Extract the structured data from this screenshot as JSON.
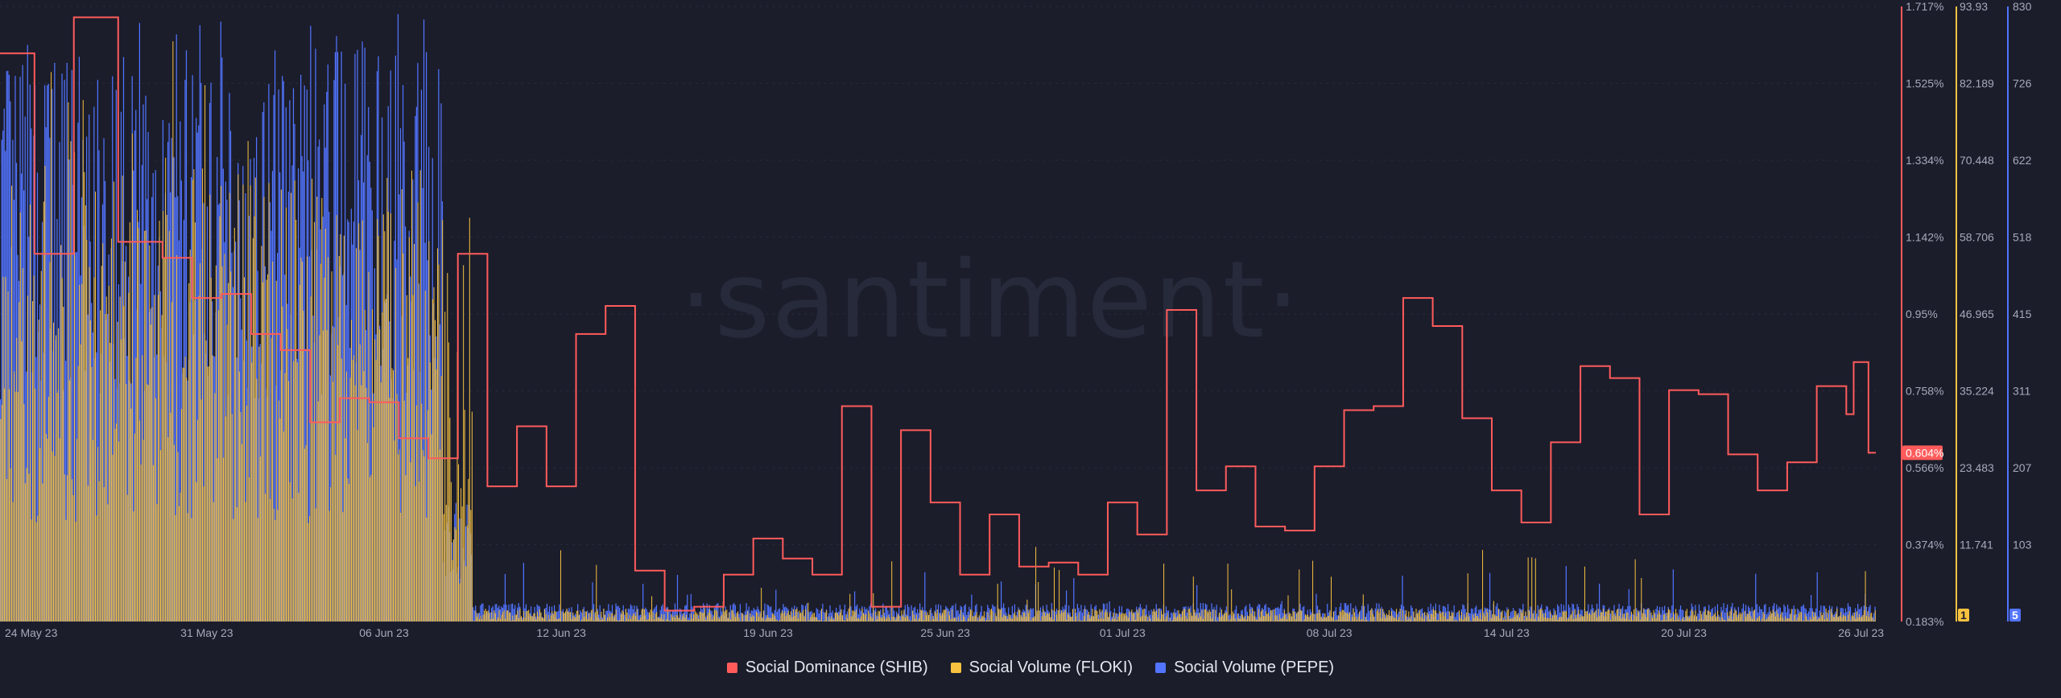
{
  "watermark": "·santiment·",
  "colors": {
    "background": "#1b1d2b",
    "shib": "#ff5b5b",
    "floki": "#f7c23f",
    "pepe": "#5274ff",
    "grid": "#2a2e3f",
    "text": "#a5a9ba"
  },
  "chart_data": {
    "type": "bar",
    "x_start": "2023-05-24",
    "x_end": "2023-07-26",
    "x_ticks": [
      "24 May 23",
      "31 May 23",
      "06 Jun 23",
      "12 Jun 23",
      "19 Jun 23",
      "25 Jun 23",
      "01 Jul 23",
      "08 Jul 23",
      "14 Jul 23",
      "20 Jul 23",
      "26 Jul 23"
    ],
    "axes": {
      "shib": {
        "ticks": [
          "1.717%",
          "1.525%",
          "1.334%",
          "1.142%",
          "0.95%",
          "0.758%",
          "0.566%",
          "0.374%",
          "0.183%"
        ],
        "range": [
          0.183,
          1.717
        ],
        "unit": "%"
      },
      "floki": {
        "ticks": [
          "93.93",
          "82.189",
          "70.448",
          "58.706",
          "46.965",
          "35.224",
          "23.483",
          "11.741"
        ],
        "range": [
          0,
          93.93
        ],
        "current_badge": "1"
      },
      "pepe": {
        "ticks": [
          "830",
          "726",
          "622",
          "518",
          "415",
          "311",
          "207",
          "103"
        ],
        "range": [
          0,
          830
        ],
        "current_badge": "5"
      }
    },
    "current_value_label": "0.604%",
    "series": [
      {
        "name": "Social Dominance (SHIB)",
        "type": "step-line",
        "axis": "shib",
        "points": [
          [
            "2023-05-24T00:00",
            1.6
          ],
          [
            "2023-05-25T04:00",
            1.1
          ],
          [
            "2023-05-26T12:00",
            1.69
          ],
          [
            "2023-05-28T00:00",
            1.13
          ],
          [
            "2023-05-29T12:00",
            1.09
          ],
          [
            "2023-05-30T12:00",
            0.99
          ],
          [
            "2023-05-31T12:00",
            1.0
          ],
          [
            "2023-06-01T12:00",
            0.9
          ],
          [
            "2023-06-02T12:00",
            0.86
          ],
          [
            "2023-06-03T12:00",
            0.68
          ],
          [
            "2023-06-04T12:00",
            0.74
          ],
          [
            "2023-06-05T12:00",
            0.73
          ],
          [
            "2023-06-06T12:00",
            0.64
          ],
          [
            "2023-06-07T12:00",
            0.59
          ],
          [
            "2023-06-08T12:00",
            1.1
          ],
          [
            "2023-06-09T12:00",
            0.52
          ],
          [
            "2023-06-10T12:00",
            0.67
          ],
          [
            "2023-06-11T12:00",
            0.52
          ],
          [
            "2023-06-12T12:00",
            0.9
          ],
          [
            "2023-06-13T12:00",
            0.97
          ],
          [
            "2023-06-14T12:00",
            0.31
          ],
          [
            "2023-06-15T12:00",
            0.21
          ],
          [
            "2023-06-16T12:00",
            0.22
          ],
          [
            "2023-06-17T12:00",
            0.3
          ],
          [
            "2023-06-18T12:00",
            0.39
          ],
          [
            "2023-06-19T12:00",
            0.34
          ],
          [
            "2023-06-20T12:00",
            0.3
          ],
          [
            "2023-06-21T12:00",
            0.72
          ],
          [
            "2023-06-22T12:00",
            0.22
          ],
          [
            "2023-06-23T12:00",
            0.66
          ],
          [
            "2023-06-24T12:00",
            0.48
          ],
          [
            "2023-06-25T12:00",
            0.3
          ],
          [
            "2023-06-26T12:00",
            0.45
          ],
          [
            "2023-06-27T12:00",
            0.32
          ],
          [
            "2023-06-28T12:00",
            0.33
          ],
          [
            "2023-06-29T12:00",
            0.3
          ],
          [
            "2023-06-30T12:00",
            0.48
          ],
          [
            "2023-07-01T12:00",
            0.4
          ],
          [
            "2023-07-02T12:00",
            0.96
          ],
          [
            "2023-07-03T12:00",
            0.51
          ],
          [
            "2023-07-04T12:00",
            0.57
          ],
          [
            "2023-07-05T12:00",
            0.42
          ],
          [
            "2023-07-06T12:00",
            0.41
          ],
          [
            "2023-07-07T12:00",
            0.57
          ],
          [
            "2023-07-08T12:00",
            0.71
          ],
          [
            "2023-07-09T12:00",
            0.72
          ],
          [
            "2023-07-10T12:00",
            0.99
          ],
          [
            "2023-07-11T12:00",
            0.92
          ],
          [
            "2023-07-12T12:00",
            0.69
          ],
          [
            "2023-07-13T12:00",
            0.51
          ],
          [
            "2023-07-14T12:00",
            0.43
          ],
          [
            "2023-07-15T12:00",
            0.63
          ],
          [
            "2023-07-16T12:00",
            0.82
          ],
          [
            "2023-07-17T12:00",
            0.79
          ],
          [
            "2023-07-18T12:00",
            0.45
          ],
          [
            "2023-07-19T12:00",
            0.76
          ],
          [
            "2023-07-20T12:00",
            0.75
          ],
          [
            "2023-07-21T12:00",
            0.6
          ],
          [
            "2023-07-22T12:00",
            0.51
          ],
          [
            "2023-07-23T12:00",
            0.58
          ],
          [
            "2023-07-24T12:00",
            0.77
          ],
          [
            "2023-07-25T12:00",
            0.7
          ],
          [
            "2023-07-25T18:00",
            0.83
          ],
          [
            "2023-07-26T06:00",
            0.604
          ],
          [
            "2023-07-26T12:00",
            0.604
          ]
        ]
      },
      {
        "name": "Social Volume (FLOKI)",
        "type": "bar",
        "axis": "floki",
        "approximate_hourly_ranges": [
          {
            "from": "2023-05-24",
            "to": "2023-06-08",
            "typical_low": 15,
            "typical_high": 70,
            "max": 92
          },
          {
            "from": "2023-06-08",
            "to": "2023-06-09",
            "typical_low": 5,
            "typical_high": 60,
            "max": 62
          },
          {
            "from": "2023-06-09",
            "to": "2023-07-26",
            "typical_low": 0,
            "typical_high": 2,
            "max": 12
          }
        ]
      },
      {
        "name": "Social Volume (PEPE)",
        "type": "bar",
        "axis": "pepe",
        "approximate_hourly_ranges": [
          {
            "from": "2023-05-24",
            "to": "2023-06-08",
            "typical_low": 300,
            "typical_high": 780,
            "max": 820
          },
          {
            "from": "2023-06-08",
            "to": "2023-06-09",
            "typical_low": 50,
            "typical_high": 160,
            "max": 160
          },
          {
            "from": "2023-06-09",
            "to": "2023-07-26",
            "typical_low": 5,
            "typical_high": 25,
            "max": 80
          }
        ]
      }
    ],
    "legend_position": "bottom-center"
  },
  "legend": [
    {
      "label": "Social Dominance (SHIB)",
      "color": "#ff5b5b"
    },
    {
      "label": "Social Volume (FLOKI)",
      "color": "#f7c23f"
    },
    {
      "label": "Social Volume (PEPE)",
      "color": "#5274ff"
    }
  ]
}
